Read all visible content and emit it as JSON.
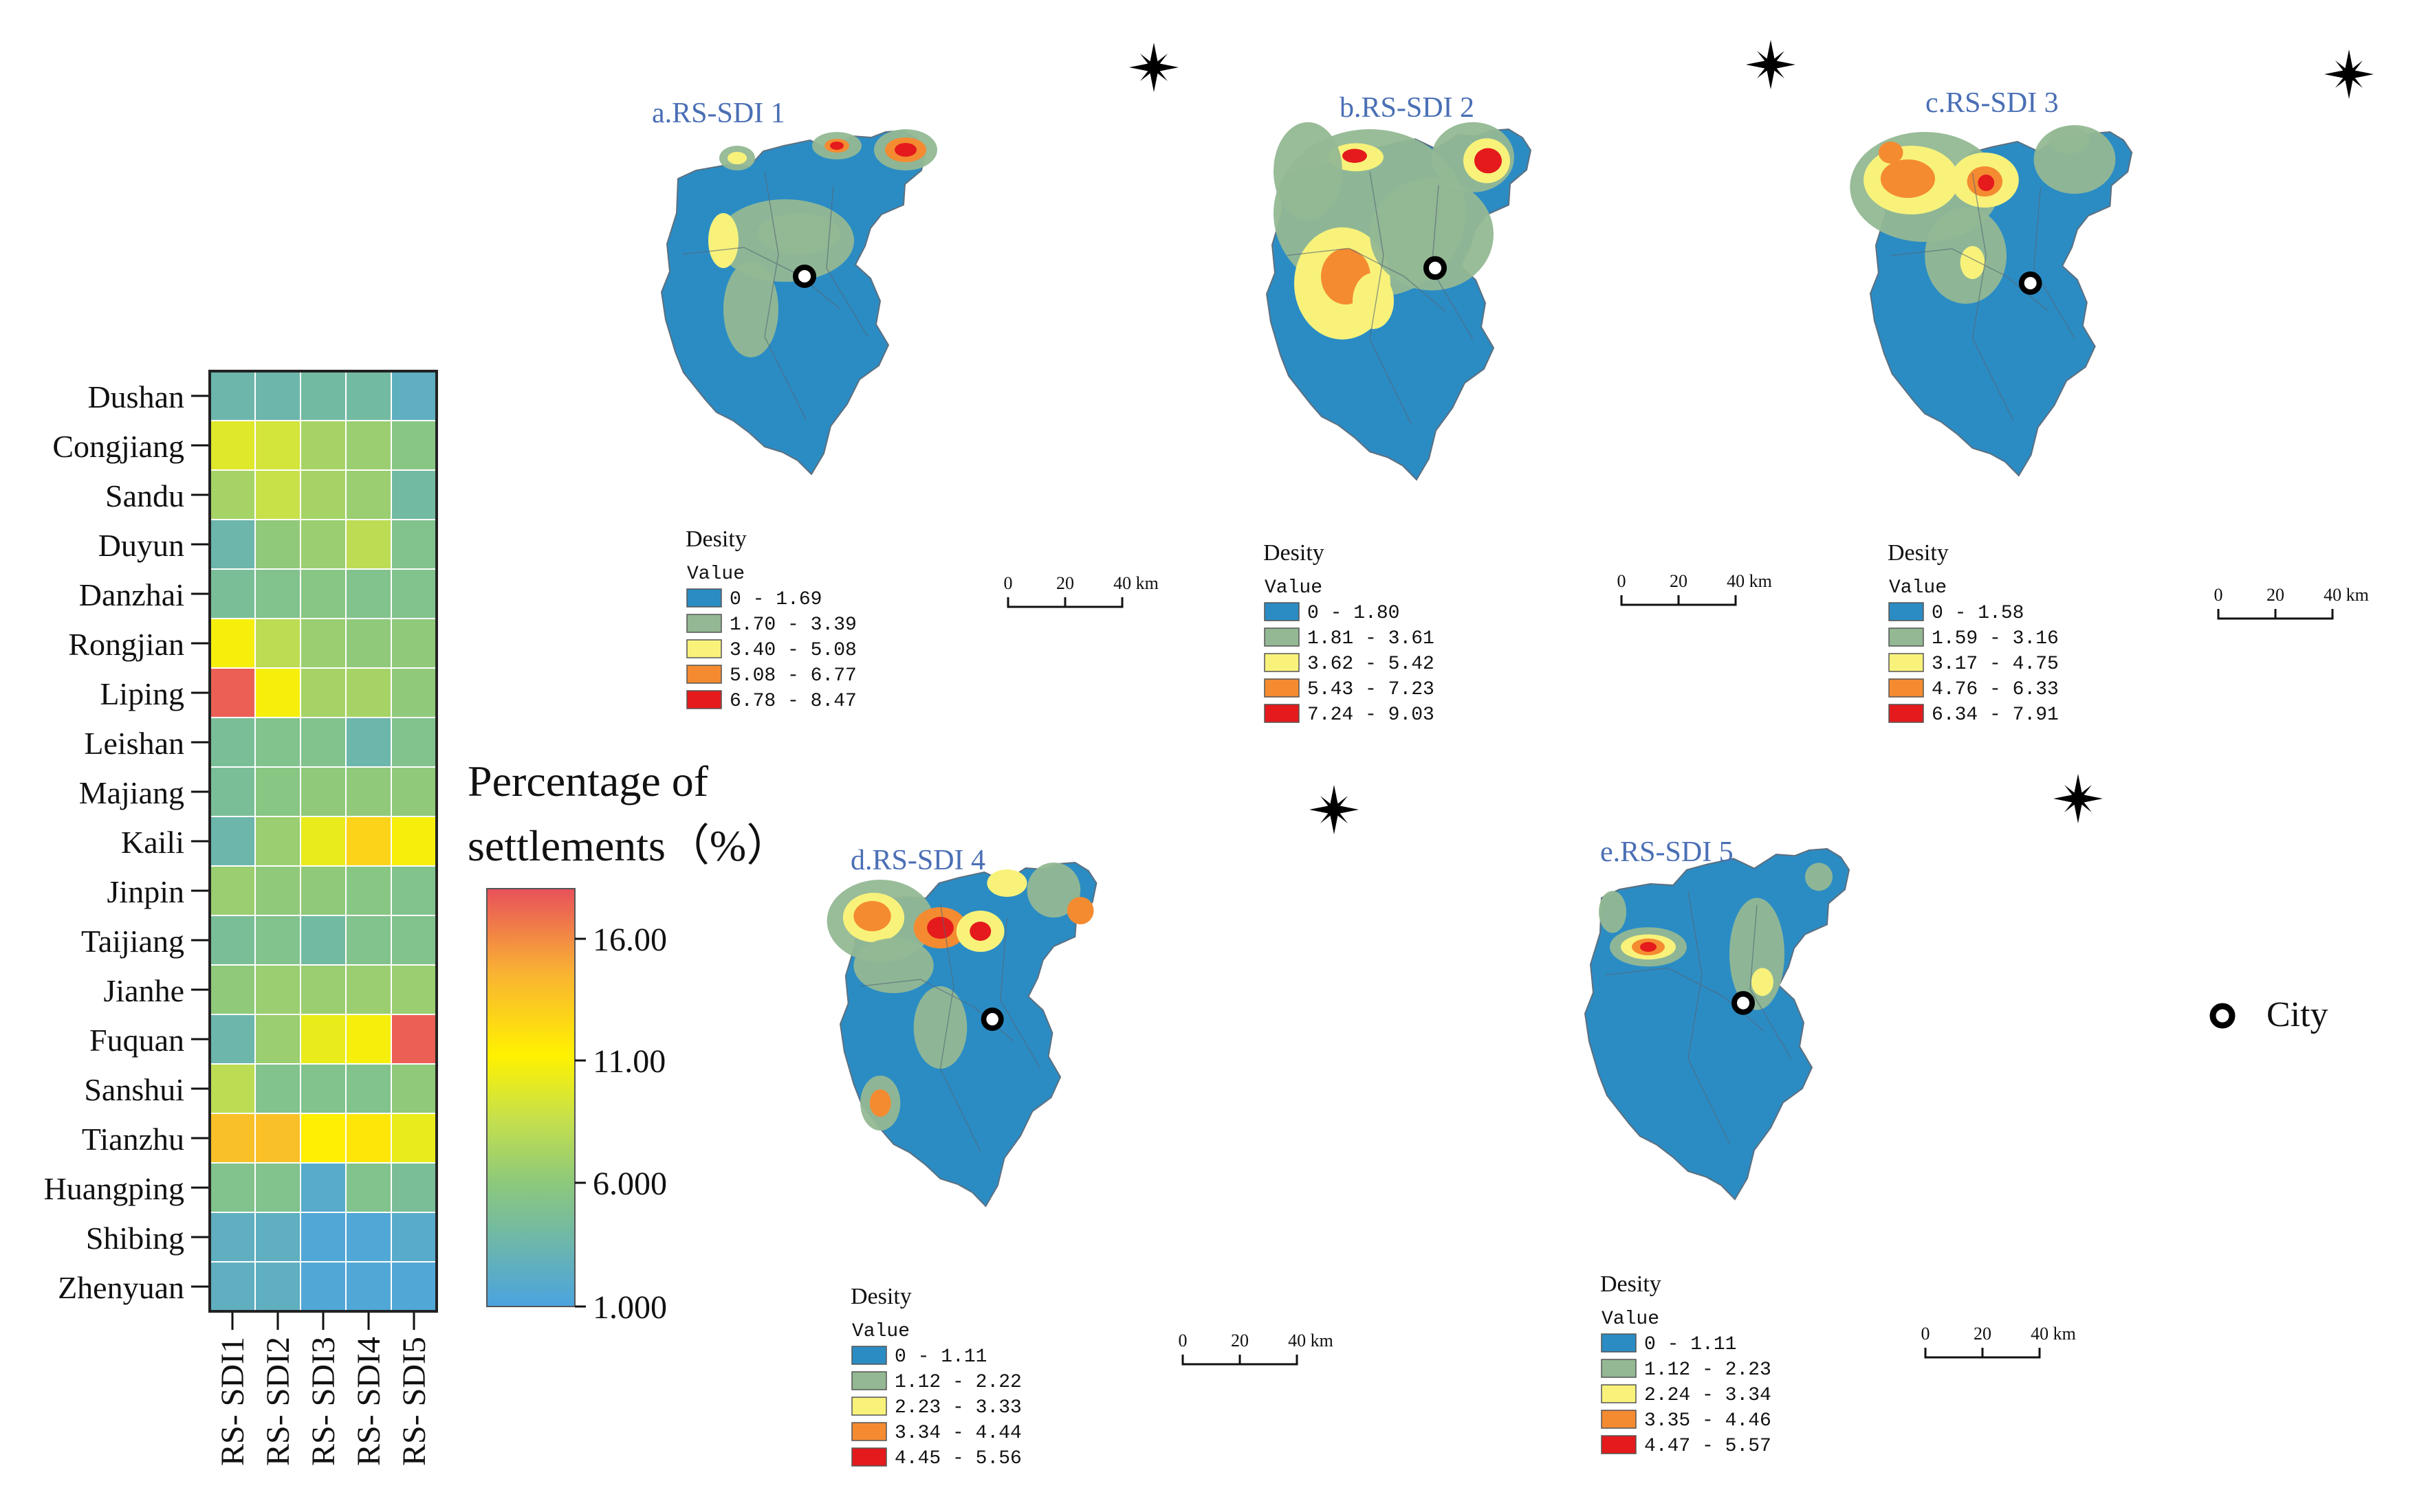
{
  "heatmap": {
    "rows": [
      "Dushan",
      "Congjiang",
      "Sandu",
      "Duyun",
      "Danzhai",
      "Rongjian",
      "Liping",
      "Leishan",
      "Majiang",
      "Kaili",
      "Jinpin",
      "Taijiang",
      "Jianhe",
      "Fuquan",
      "Sanshui",
      "Tianzhu",
      "Huangping",
      "Shibing",
      "Zhenyuan"
    ],
    "columns": [
      "RS- SDI1",
      "RS- SDI2",
      "RS- SDI3",
      "RS- SDI4",
      "RS- SDI5"
    ],
    "values": [
      [
        3.5,
        3.5,
        4.0,
        4.0,
        2.5
      ],
      [
        9.5,
        9.0,
        7.0,
        6.5,
        5.5
      ],
      [
        7.0,
        8.5,
        7.0,
        6.5,
        4.0
      ],
      [
        3.5,
        6.0,
        6.5,
        8.0,
        5.0
      ],
      [
        4.5,
        5.0,
        5.5,
        5.0,
        5.0
      ],
      [
        10.5,
        8.0,
        6.5,
        6.0,
        6.0
      ],
      [
        17.0,
        10.5,
        7.0,
        7.0,
        6.0
      ],
      [
        4.5,
        5.0,
        5.0,
        3.5,
        5.0
      ],
      [
        4.5,
        5.5,
        6.0,
        6.0,
        6.0
      ],
      [
        3.5,
        6.5,
        10.0,
        12.5,
        10.5
      ],
      [
        6.5,
        6.0,
        6.0,
        5.5,
        5.0
      ],
      [
        4.5,
        5.0,
        4.0,
        5.0,
        5.0
      ],
      [
        6.0,
        6.5,
        6.5,
        6.5,
        6.5
      ],
      [
        3.5,
        6.5,
        10.0,
        10.5,
        17.0
      ],
      [
        8.0,
        5.0,
        5.0,
        5.0,
        6.0
      ],
      [
        13.5,
        13.5,
        11.0,
        11.5,
        10.0
      ],
      [
        5.0,
        5.0,
        2.0,
        5.0,
        4.5
      ],
      [
        2.5,
        2.5,
        1.5,
        1.5,
        2.0
      ],
      [
        2.5,
        2.5,
        1.5,
        1.5,
        1.5
      ]
    ],
    "colorbar_title_line1": "Percentage of",
    "colorbar_title_line2": "settlements（%）",
    "colorbar_ticks": [
      "16.00",
      "11.00",
      "6.000",
      "1.000"
    ],
    "color_range": [
      1,
      17.5
    ],
    "color_stops": [
      "#4aa3df",
      "#8ec97a",
      "#c6e04b",
      "#fff200",
      "#f9b233",
      "#e8505b"
    ]
  },
  "maps": [
    {
      "title": "a.RS-SDI 1",
      "legend_title": "Desity",
      "legend_value_label": "Value",
      "classes": [
        "0 - 1.69",
        "1.70 - 3.39",
        "3.40 - 5.08",
        "5.08 - 6.77",
        "6.78 - 8.47"
      ],
      "scale_ticks": [
        "0",
        "20",
        "40 km"
      ]
    },
    {
      "title": "b.RS-SDI 2",
      "legend_title": "Desity",
      "legend_value_label": "Value",
      "classes": [
        "0 - 1.80",
        "1.81 - 3.61",
        "3.62 - 5.42",
        "5.43 - 7.23",
        "7.24 - 9.03"
      ],
      "scale_ticks": [
        "0",
        "20",
        "40 km"
      ]
    },
    {
      "title": "c.RS-SDI 3",
      "legend_title": "Desity",
      "legend_value_label": "Value",
      "classes": [
        "0 - 1.58",
        "1.59 - 3.16",
        "3.17 - 4.75",
        "4.76 - 6.33",
        "6.34 - 7.91"
      ],
      "scale_ticks": [
        "0",
        "20",
        "40 km"
      ]
    },
    {
      "title": "d.RS-SDI 4",
      "legend_title": "Desity",
      "legend_value_label": "Value",
      "classes": [
        "0 - 1.11",
        "1.12 - 2.22",
        "2.23 - 3.33",
        "3.34 - 4.44",
        "4.45 - 5.56"
      ],
      "scale_ticks": [
        "0",
        "20",
        "40 km"
      ]
    },
    {
      "title": "e.RS-SDI 5",
      "legend_title": "Desity",
      "legend_value_label": "Value",
      "classes": [
        "0 - 1.11",
        "1.12 - 2.23",
        "2.24 - 3.34",
        "3.35 - 4.46",
        "4.47 - 5.57"
      ],
      "scale_ticks": [
        "0",
        "20",
        "40 km"
      ]
    }
  ],
  "density_colors": [
    "#2b8cc4",
    "#93b893",
    "#f8f27b",
    "#f48b31",
    "#e41a1c"
  ],
  "city_legend": "City",
  "colors": {
    "map_title": "#4a6fb5",
    "outline": "#6f7f8f",
    "grid": "#333333"
  }
}
